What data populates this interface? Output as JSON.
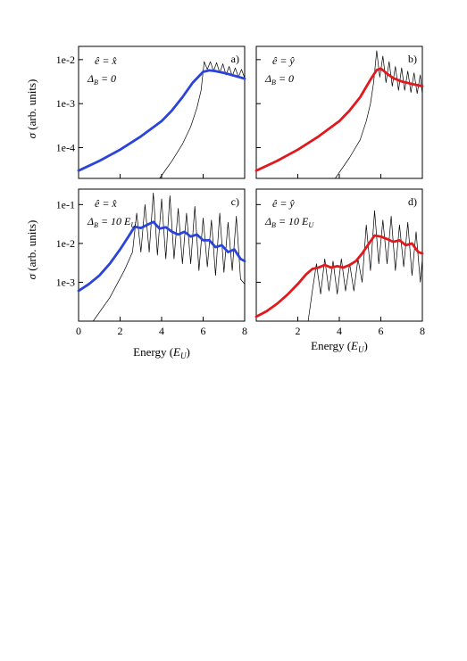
{
  "figure": {
    "y_axis_label_prefix": "σ",
    "y_axis_label": "(arb. units)",
    "x_axis_label_prefix": "Energy (",
    "x_axis_label_unit": "E",
    "x_axis_label_sub": "U",
    "x_axis_label_suffix": ")"
  },
  "chart_data": [
    {
      "type": "line",
      "panel": "a)",
      "annotation": {
        "polarization": "ê = x̂",
        "delta": "Δ",
        "delta_sub": "B",
        "delta_value": "= 0"
      },
      "y_scale": "log",
      "xlim": [
        0,
        8
      ],
      "ylim": [
        2e-05,
        0.02
      ],
      "yticks": [
        "1e-4",
        "1e-3",
        "1e-2"
      ],
      "xticks": [],
      "thick_color": "#2a43d8",
      "series": [
        {
          "style": "thick",
          "x": [
            0,
            1,
            2,
            3,
            4,
            4.5,
            5,
            5.5,
            6,
            6.3,
            6.6,
            7,
            7.5,
            8
          ],
          "y": [
            3e-05,
            5e-05,
            9e-05,
            0.00018,
            0.0004,
            0.0007,
            0.0014,
            0.003,
            0.0053,
            0.0057,
            0.0055,
            0.005,
            0.0043,
            0.0037
          ]
        },
        {
          "style": "thin",
          "x": [
            3.9,
            4.5,
            5,
            5.4,
            5.7,
            5.9,
            6.05,
            6.2,
            6.35,
            6.5,
            6.65,
            6.8,
            6.95,
            7.1,
            7.25,
            7.4,
            7.55,
            7.7,
            7.85,
            8
          ],
          "y": [
            2e-05,
            5e-05,
            0.00012,
            0.0003,
            0.0008,
            0.002,
            0.009,
            0.006,
            0.009,
            0.0055,
            0.0085,
            0.005,
            0.008,
            0.0045,
            0.007,
            0.0042,
            0.0065,
            0.004,
            0.006,
            0.0038
          ]
        }
      ]
    },
    {
      "type": "line",
      "panel": "b)",
      "annotation": {
        "polarization": "ê = ŷ",
        "delta": "Δ",
        "delta_sub": "B",
        "delta_value": "= 0"
      },
      "y_scale": "log",
      "xlim": [
        0,
        8
      ],
      "ylim": [
        2e-05,
        0.02
      ],
      "yticks": [],
      "xticks": [],
      "thick_color": "#e0191e",
      "series": [
        {
          "style": "thick",
          "x": [
            0,
            1,
            2,
            3,
            4,
            4.5,
            5,
            5.5,
            5.8,
            6,
            6.3,
            6.6,
            7,
            7.5,
            8
          ],
          "y": [
            3e-05,
            5e-05,
            9e-05,
            0.00018,
            0.0004,
            0.0007,
            0.0014,
            0.0035,
            0.0058,
            0.0063,
            0.0048,
            0.0038,
            0.0032,
            0.0028,
            0.0025
          ]
        },
        {
          "style": "thin",
          "x": [
            3.8,
            4.5,
            5,
            5.3,
            5.5,
            5.65,
            5.8,
            5.95,
            6.1,
            6.25,
            6.4,
            6.55,
            6.7,
            6.85,
            7.0,
            7.15,
            7.3,
            7.45,
            7.6,
            7.75,
            7.9,
            8
          ],
          "y": [
            2e-05,
            6e-05,
            0.00015,
            0.0004,
            0.001,
            0.003,
            0.016,
            0.004,
            0.012,
            0.003,
            0.009,
            0.0025,
            0.007,
            0.002,
            0.0065,
            0.002,
            0.0055,
            0.0018,
            0.005,
            0.0017,
            0.0045,
            0.0016
          ]
        }
      ]
    },
    {
      "type": "line",
      "panel": "c)",
      "annotation": {
        "polarization": "ê = x̂",
        "delta": "Δ",
        "delta_sub": "B",
        "delta_value": "= 10 ",
        "delta_unit": "E",
        "delta_unit_sub": "U"
      },
      "y_scale": "log",
      "xlim": [
        0,
        8
      ],
      "ylim": [
        0.0001,
        0.25
      ],
      "yticks": [
        "1e-3",
        "1e-2",
        "1e-1"
      ],
      "xticks": [
        "0",
        "2",
        "4",
        "6",
        "8"
      ],
      "thick_color": "#2a43d8",
      "series": [
        {
          "style": "thick",
          "x": [
            0,
            0.5,
            1,
            1.5,
            2,
            2.4,
            2.7,
            3.0,
            3.3,
            3.6,
            3.9,
            4.2,
            4.5,
            4.8,
            5.1,
            5.4,
            5.7,
            6.0,
            6.3,
            6.6,
            6.9,
            7.2,
            7.5,
            7.8,
            8
          ],
          "y": [
            0.0006,
            0.0009,
            0.0015,
            0.003,
            0.007,
            0.015,
            0.027,
            0.025,
            0.03,
            0.036,
            0.024,
            0.026,
            0.02,
            0.017,
            0.02,
            0.015,
            0.017,
            0.012,
            0.012,
            0.008,
            0.009,
            0.006,
            0.007,
            0.004,
            0.0035
          ]
        },
        {
          "style": "thin",
          "x": [
            0.7,
            1.5,
            2.2,
            2.6,
            2.8,
            3.0,
            3.2,
            3.4,
            3.6,
            3.8,
            4.0,
            4.2,
            4.4,
            4.6,
            4.8,
            5.0,
            5.2,
            5.4,
            5.6,
            5.8,
            6.0,
            6.2,
            6.4,
            6.6,
            6.8,
            7.0,
            7.2,
            7.4,
            7.6,
            7.8,
            8
          ],
          "y": [
            0.0001,
            0.0004,
            0.002,
            0.006,
            0.06,
            0.006,
            0.1,
            0.006,
            0.2,
            0.005,
            0.14,
            0.004,
            0.17,
            0.004,
            0.08,
            0.003,
            0.06,
            0.003,
            0.09,
            0.002,
            0.045,
            0.0025,
            0.04,
            0.0015,
            0.06,
            0.0018,
            0.035,
            0.002,
            0.05,
            0.0012,
            0.0009
          ]
        }
      ]
    },
    {
      "type": "line",
      "panel": "d)",
      "annotation": {
        "polarization": "ê = ŷ",
        "delta": "Δ",
        "delta_sub": "B",
        "delta_value": "= 10 ",
        "delta_unit": "E",
        "delta_unit_sub": "U"
      },
      "y_scale": "log",
      "xlim": [
        0,
        8
      ],
      "ylim": [
        0.0001,
        0.25
      ],
      "yticks": [],
      "xticks": [
        "2",
        "4",
        "6",
        "8"
      ],
      "thick_color": "#e0191e",
      "series": [
        {
          "style": "thick",
          "x": [
            0,
            0.5,
            1,
            1.5,
            2,
            2.4,
            2.7,
            3.0,
            3.3,
            3.6,
            3.9,
            4.2,
            4.5,
            4.8,
            5.1,
            5.4,
            5.7,
            6.0,
            6.3,
            6.6,
            6.9,
            7.2,
            7.5,
            7.8,
            8
          ],
          "y": [
            0.00013,
            0.00018,
            0.00028,
            0.00048,
            0.0009,
            0.0016,
            0.0022,
            0.0024,
            0.0028,
            0.0024,
            0.0026,
            0.0024,
            0.0028,
            0.0035,
            0.0055,
            0.0095,
            0.016,
            0.015,
            0.013,
            0.011,
            0.012,
            0.009,
            0.01,
            0.006,
            0.0055
          ]
        },
        {
          "style": "thin",
          "x": [
            2.5,
            2.7,
            2.9,
            3.1,
            3.3,
            3.5,
            3.7,
            3.9,
            4.1,
            4.3,
            4.5,
            4.7,
            4.9,
            5.1,
            5.3,
            5.5,
            5.7,
            5.9,
            6.1,
            6.3,
            6.5,
            6.7,
            6.9,
            7.1,
            7.3,
            7.5,
            7.7,
            7.9,
            8
          ],
          "y": [
            0.0001,
            0.0006,
            0.003,
            0.0005,
            0.004,
            0.0006,
            0.0035,
            0.0005,
            0.004,
            0.0006,
            0.003,
            0.0006,
            0.004,
            0.001,
            0.03,
            0.002,
            0.07,
            0.003,
            0.04,
            0.003,
            0.05,
            0.002,
            0.03,
            0.0025,
            0.035,
            0.0015,
            0.02,
            0.001,
            0.004
          ]
        }
      ]
    }
  ]
}
